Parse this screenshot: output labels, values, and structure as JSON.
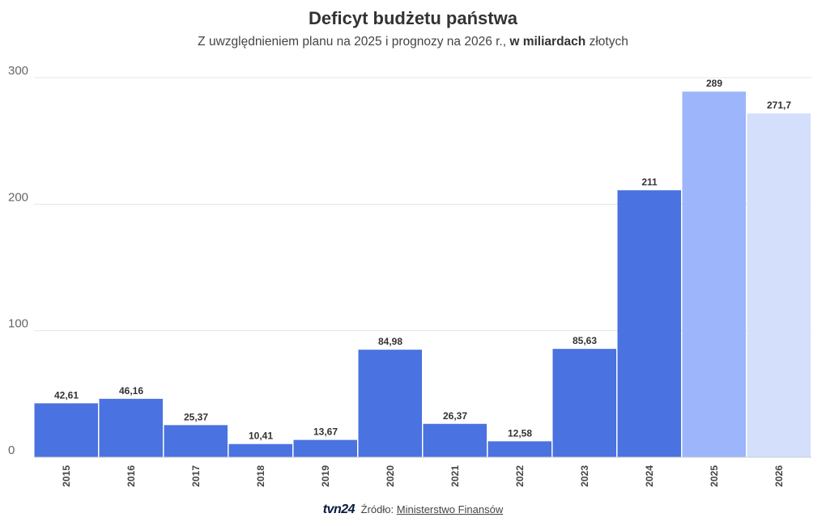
{
  "title": "Deficyt budżetu państwa",
  "subtitle": {
    "before": "Z uwzględnieniem planu na 2025 i prognozy na 2026 r., ",
    "bold": "w miliardach",
    "after": " złotych"
  },
  "source": {
    "logo": "tvn24",
    "label": "Źródło:",
    "link_text": "Ministerstwo Finansów"
  },
  "colors": {
    "actual": "#4a72e0",
    "plan": "#9db5fb",
    "forecast": "#d3dffb",
    "grid": "#e6e6e6",
    "axis": "#cccccc"
  },
  "chart_data": {
    "type": "bar",
    "title": "Deficyt budżetu państwa",
    "xlabel": "",
    "ylabel": "",
    "ylim": [
      0,
      300
    ],
    "yticks": [
      0,
      100,
      200,
      300
    ],
    "ytick_labels": [
      "0",
      "100",
      "200",
      "300"
    ],
    "grid": true,
    "categories": [
      "2015",
      "2016",
      "2017",
      "2018",
      "2019",
      "2020",
      "2021",
      "2022",
      "2023",
      "2024",
      "2025",
      "2026"
    ],
    "values": [
      42.61,
      46.16,
      25.37,
      10.41,
      13.67,
      84.98,
      26.37,
      12.58,
      85.63,
      211,
      289,
      271.7
    ],
    "value_labels": [
      "42,61",
      "46,16",
      "25,37",
      "10,41",
      "13,67",
      "84,98",
      "26,37",
      "12,58",
      "85,63",
      "211",
      "289",
      "271,7"
    ],
    "kinds": [
      "actual",
      "actual",
      "actual",
      "actual",
      "actual",
      "actual",
      "actual",
      "actual",
      "actual",
      "actual",
      "plan",
      "forecast"
    ]
  }
}
